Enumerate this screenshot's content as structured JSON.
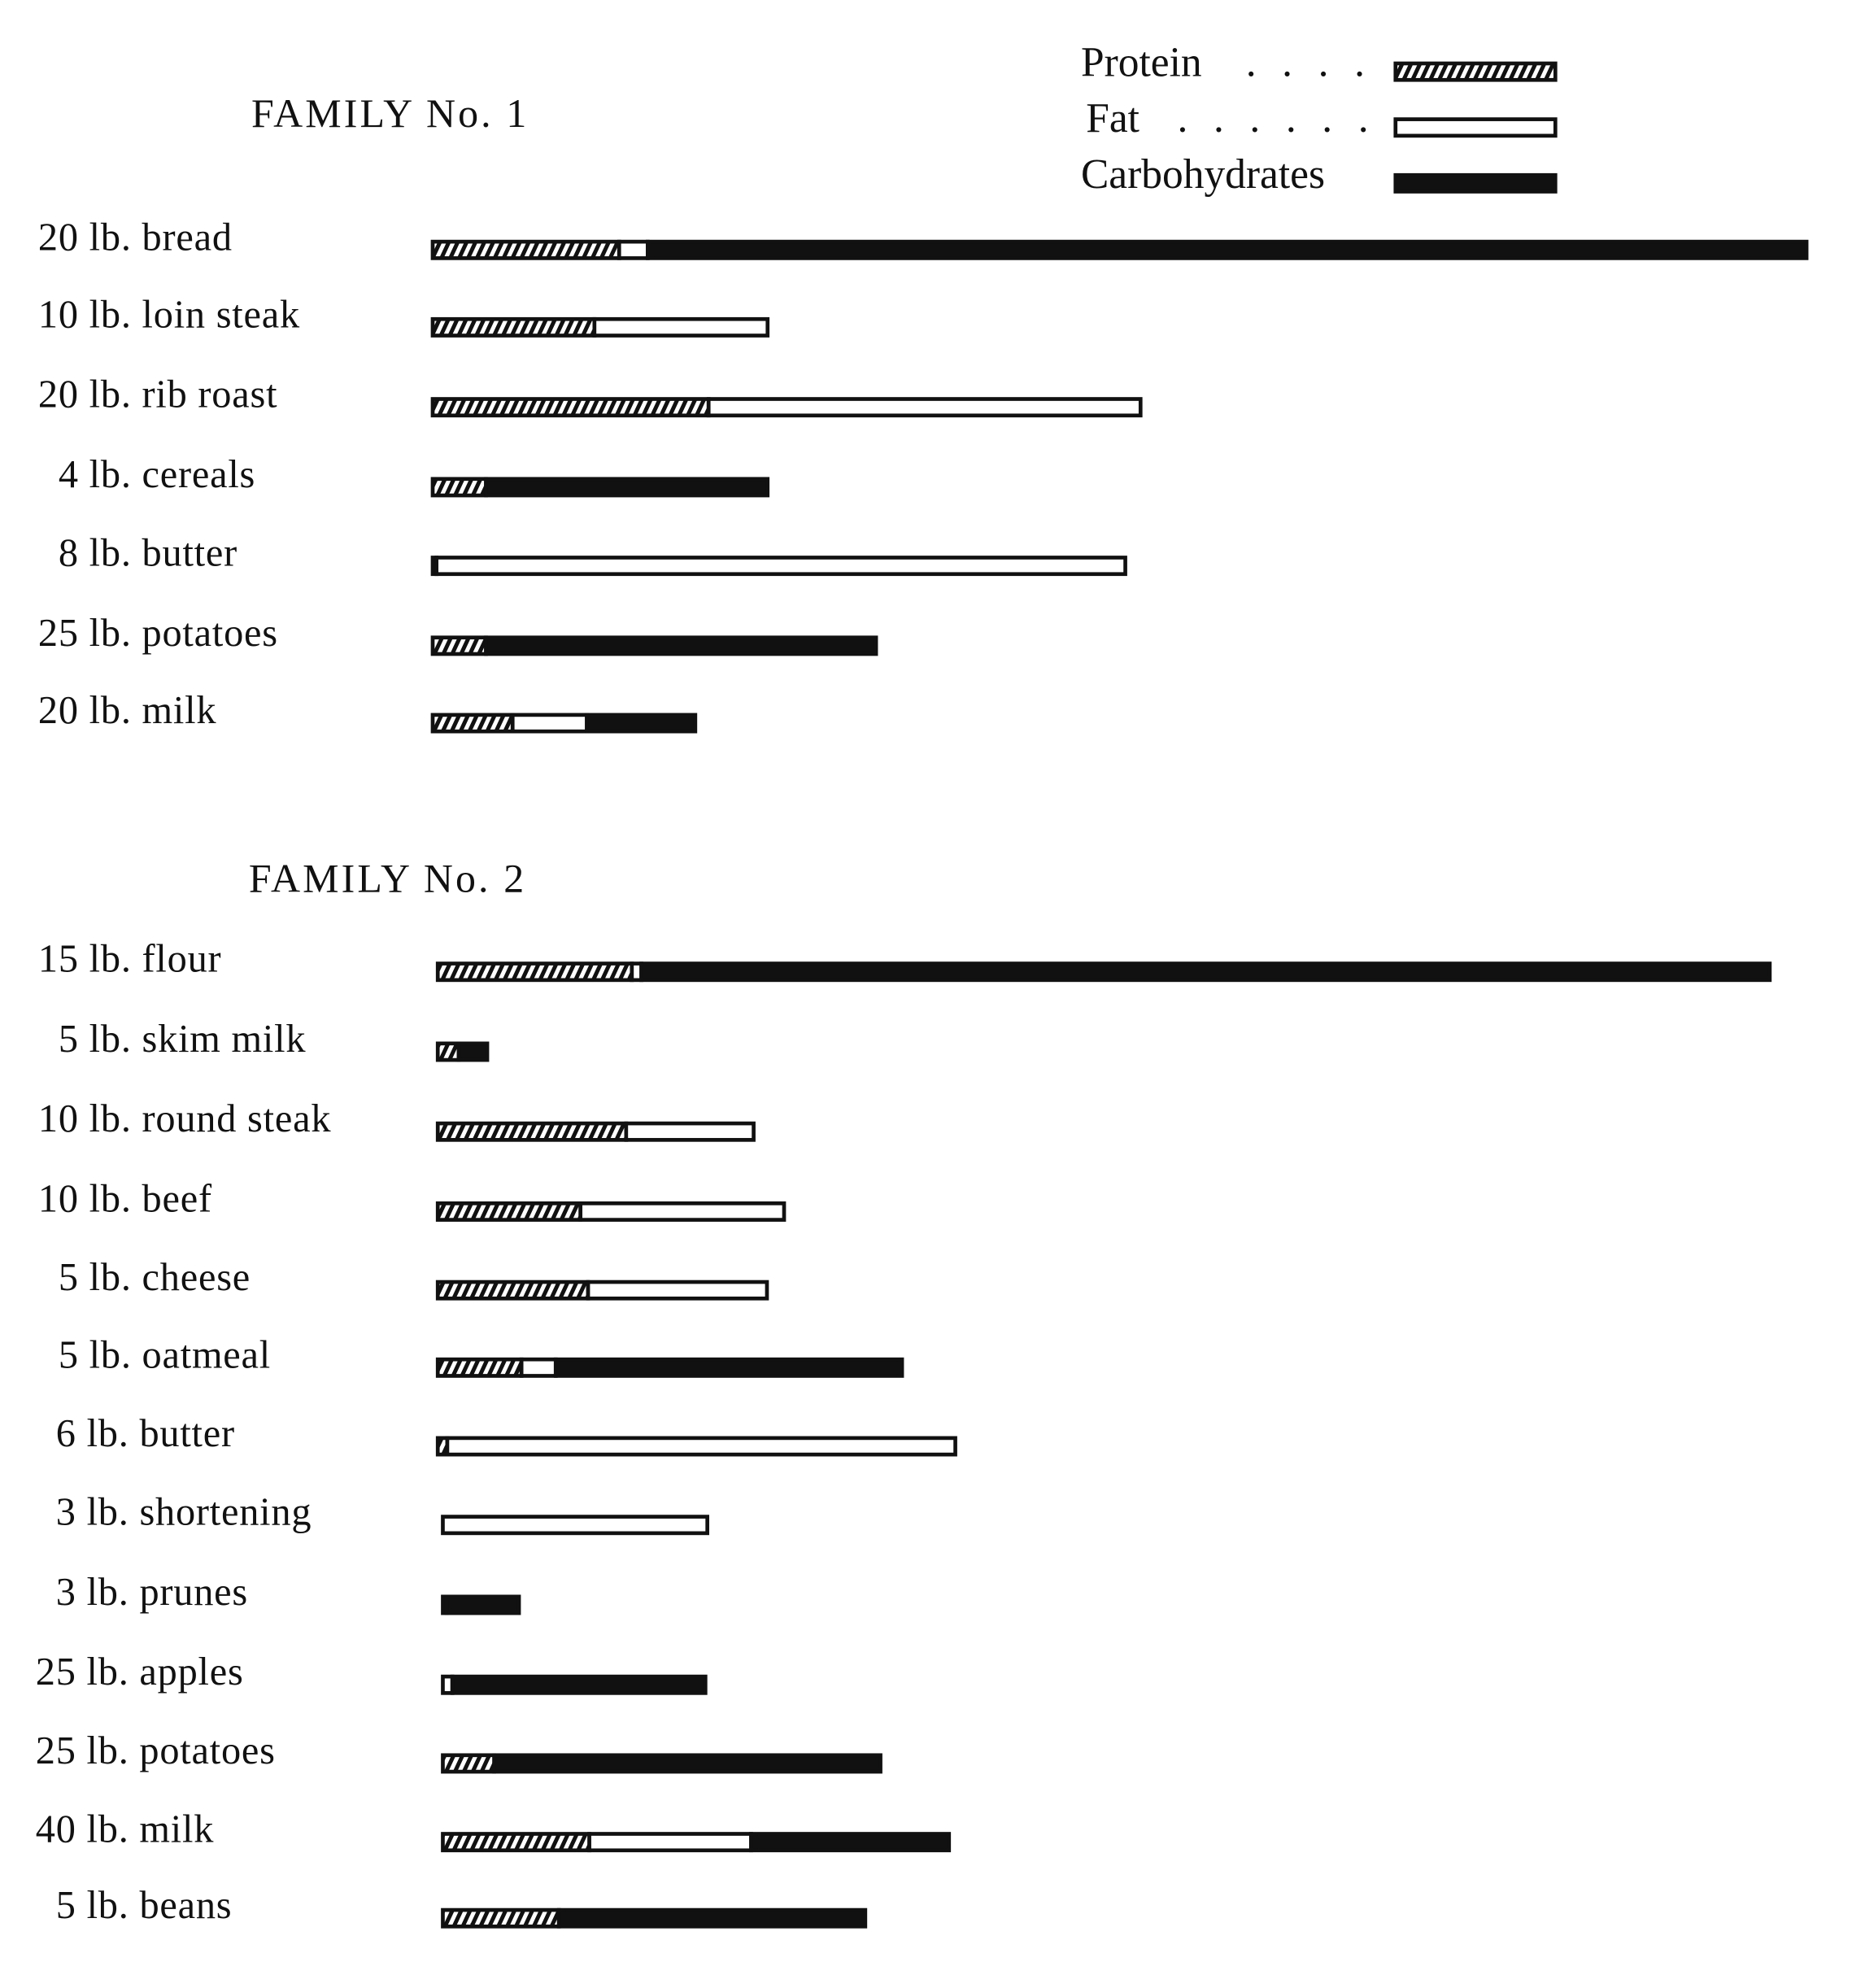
{
  "chart_data": {
    "type": "bar",
    "orientation": "horizontal",
    "stacked": true,
    "grid": false,
    "legend_placement": "top-right",
    "units": "relative bar length (no scale printed)",
    "legend": [
      {
        "name": "Protein",
        "leader": ". . . .",
        "pattern": "hatched"
      },
      {
        "name": "Fat",
        "leader": ". . . . . .",
        "pattern": "open"
      },
      {
        "name": "Carbohydrates",
        "leader": "",
        "pattern": "solid"
      }
    ],
    "colors": {
      "ink": "#111111",
      "paper": "#ffffff"
    },
    "panels": [
      {
        "title": "FAMILY No. 1",
        "categories": [
          "20 lb. bread",
          "10 lb. loin steak",
          "20 lb. rib roast",
          "4 lb. cereals",
          "8 lb. butter",
          "25 lb. potatoes",
          "20 lb. milk"
        ],
        "series": [
          {
            "name": "Protein",
            "values": [
              0.98,
              0.85,
              1.45,
              0.28,
              0.02,
              0.28,
              0.42
            ]
          },
          {
            "name": "Fat",
            "values": [
              0.15,
              0.91,
              2.27,
              0,
              3.62,
              0,
              0.39
            ]
          },
          {
            "name": "Carbohydrates",
            "values": [
              6.09,
              0,
              0,
              1.48,
              0,
              2.05,
              0.57
            ]
          }
        ]
      },
      {
        "title": "FAMILY No. 2",
        "categories": [
          "15 lb. flour",
          "5 lb. skim milk",
          "10 lb. round steak",
          "10 lb. beef",
          "5 lb. cheese",
          "5 lb. oatmeal",
          "6 lb. butter",
          "3 lb. shortening",
          "3 lb. prunes",
          "25 lb. apples",
          "25 lb. potatoes",
          "40 lb. milk",
          "5 lb. beans"
        ],
        "series": [
          {
            "name": "Protein",
            "values": [
              1.02,
              0.11,
              0.99,
              0.75,
              0.79,
              0.44,
              0.05,
              0,
              0,
              0,
              0.27,
              0.77,
              0.61
            ]
          },
          {
            "name": "Fat",
            "values": [
              0.05,
              0,
              0.67,
              1.07,
              0.94,
              0.18,
              2.67,
              1.39,
              0.02,
              0.05,
              0,
              0.85,
              0
            ]
          },
          {
            "name": "Carbohydrates",
            "values": [
              5.93,
              0.15,
              0,
              0,
              0,
              1.82,
              0,
              0,
              0.38,
              1.33,
              2.03,
              1.04,
              1.61
            ]
          }
        ]
      }
    ]
  }
}
